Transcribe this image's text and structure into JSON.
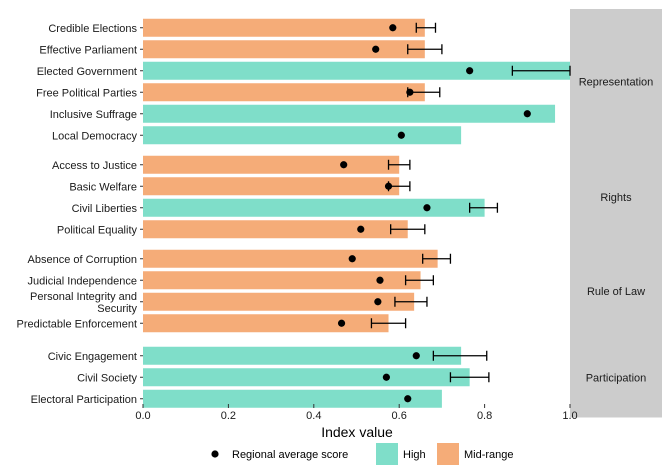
{
  "chart_data": {
    "type": "bar",
    "orientation": "horizontal",
    "xlabel": "Index value",
    "xlim": [
      0,
      1.0
    ],
    "xticks": [
      "0.0",
      "0.2",
      "0.4",
      "0.6",
      "0.8",
      "1.0"
    ],
    "xtick_values": [
      0,
      0.2,
      0.4,
      0.6,
      0.8,
      1.0
    ],
    "colors": {
      "High": "#7fdec9",
      "Mid-range": "#f5ac78",
      "point": "#000000",
      "strip": "#cccccc",
      "grid": "#ffffff",
      "panel_bg": "#ffffff"
    },
    "legend": {
      "position": "bottom",
      "items": [
        {
          "key": "point",
          "label": "Regional average score"
        },
        {
          "key": "High",
          "label": "High"
        },
        {
          "key": "Mid-range",
          "label": "Mid-range"
        }
      ]
    },
    "panels": [
      {
        "name": "Representation",
        "rows": [
          {
            "label": [
              "Credible Elections"
            ],
            "value": 0.66,
            "level": "Mid-range",
            "avg": 0.585,
            "err": [
              0.64,
              0.685
            ]
          },
          {
            "label": [
              "Effective Parliament"
            ],
            "value": 0.66,
            "level": "Mid-range",
            "avg": 0.545,
            "err": [
              0.62,
              0.7
            ]
          },
          {
            "label": [
              "Elected Government"
            ],
            "value": 1.0,
            "level": "High",
            "avg": 0.765,
            "err": [
              0.865,
              1.0
            ]
          },
          {
            "label": [
              "Free Political Parties"
            ],
            "value": 0.66,
            "level": "Mid-range",
            "avg": 0.625,
            "err": [
              0.62,
              0.695
            ]
          },
          {
            "label": [
              "Inclusive Suffrage"
            ],
            "value": 0.965,
            "level": "High",
            "avg": 0.9,
            "err": null
          },
          {
            "label": [
              "Local Democracy"
            ],
            "value": 0.745,
            "level": "High",
            "avg": 0.605,
            "err": null
          }
        ]
      },
      {
        "name": "Rights",
        "rows": [
          {
            "label": [
              "Access to Justice"
            ],
            "value": 0.6,
            "level": "Mid-range",
            "avg": 0.47,
            "err": [
              0.575,
              0.625
            ]
          },
          {
            "label": [
              "Basic Welfare"
            ],
            "value": 0.6,
            "level": "Mid-range",
            "avg": 0.575,
            "err": [
              0.575,
              0.625
            ]
          },
          {
            "label": [
              "Civil Liberties"
            ],
            "value": 0.8,
            "level": "High",
            "avg": 0.665,
            "err": [
              0.765,
              0.83
            ]
          },
          {
            "label": [
              "Political Equality"
            ],
            "value": 0.62,
            "level": "Mid-range",
            "avg": 0.51,
            "err": [
              0.58,
              0.66
            ]
          }
        ]
      },
      {
        "name": "Rule of Law",
        "rows": [
          {
            "label": [
              "Absence of Corruption"
            ],
            "value": 0.69,
            "level": "Mid-range",
            "avg": 0.49,
            "err": [
              0.655,
              0.72
            ]
          },
          {
            "label": [
              "Judicial Independence"
            ],
            "value": 0.65,
            "level": "Mid-range",
            "avg": 0.555,
            "err": [
              0.615,
              0.68
            ]
          },
          {
            "label": [
              "Personal Integrity and",
              "Security"
            ],
            "value": 0.635,
            "level": "Mid-range",
            "avg": 0.55,
            "err": [
              0.59,
              0.665
            ]
          },
          {
            "label": [
              "Predictable Enforcement"
            ],
            "value": 0.575,
            "level": "Mid-range",
            "avg": 0.465,
            "err": [
              0.535,
              0.615
            ]
          }
        ]
      },
      {
        "name": "Participation",
        "rows": [
          {
            "label": [
              "Civic Engagement"
            ],
            "value": 0.745,
            "level": "High",
            "avg": 0.64,
            "err": [
              0.68,
              0.805
            ]
          },
          {
            "label": [
              "Civil Society"
            ],
            "value": 0.765,
            "level": "High",
            "avg": 0.57,
            "err": [
              0.72,
              0.81
            ]
          },
          {
            "label": [
              "Electoral Participation"
            ],
            "value": 0.7,
            "level": "High",
            "avg": 0.62,
            "err": null
          }
        ]
      }
    ]
  }
}
